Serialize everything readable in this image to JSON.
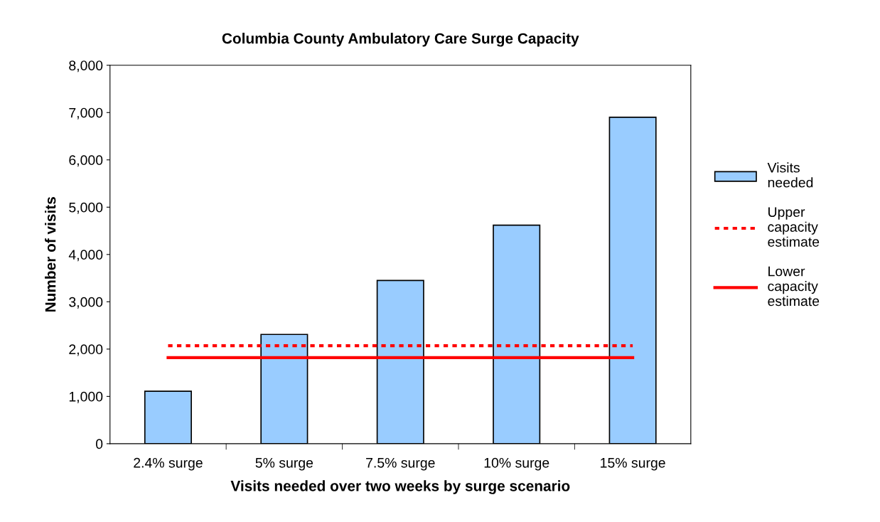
{
  "chart_data": {
    "type": "bar",
    "title": "Columbia County Ambulatory Care Surge Capacity",
    "xlabel": "Visits needed over two weeks by surge scenario",
    "ylabel": "Number of visits",
    "categories": [
      "2.4% surge",
      "5% surge",
      "7.5% surge",
      "10% surge",
      "15% surge"
    ],
    "series": [
      {
        "name": "Visits needed",
        "color": "#99ccff",
        "values": [
          1110,
          2310,
          3450,
          4620,
          6900
        ]
      },
      {
        "name": "Upper capacity estimate",
        "type": "line",
        "color": "#ff0000",
        "line_style": "dotted",
        "values": [
          2070,
          2070,
          2070,
          2070,
          2070
        ]
      },
      {
        "name": "Lower capacity estimate",
        "type": "line",
        "color": "#ff0000",
        "line_style": "solid",
        "values": [
          1820,
          1820,
          1820,
          1820,
          1820
        ]
      }
    ],
    "ylim": [
      0,
      8000
    ],
    "yticks": [
      {
        "value": 0,
        "label": "0"
      },
      {
        "value": 1000,
        "label": "1,000"
      },
      {
        "value": 2000,
        "label": "2,000"
      },
      {
        "value": 3000,
        "label": "3,000"
      },
      {
        "value": 4000,
        "label": "4,000"
      },
      {
        "value": 5000,
        "label": "5,000"
      },
      {
        "value": 6000,
        "label": "6,000"
      },
      {
        "value": 7000,
        "label": "7,000"
      },
      {
        "value": 8000,
        "label": "8,000"
      }
    ],
    "grid": false,
    "legend": "right"
  }
}
